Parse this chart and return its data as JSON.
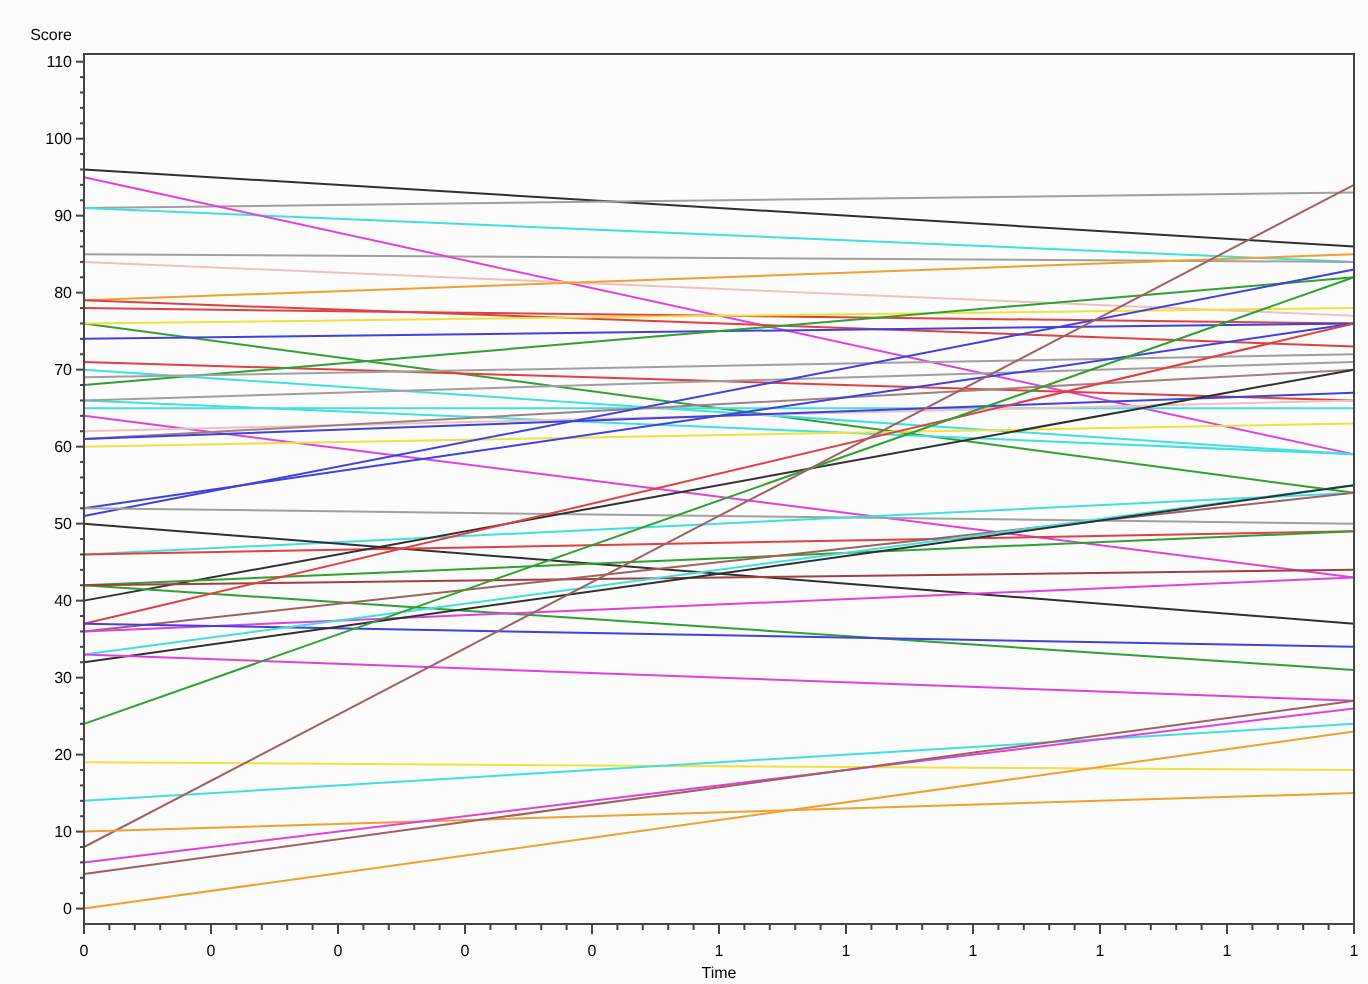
{
  "chart_data": {
    "type": "line",
    "xlabel": "Time",
    "ylabel": "Score",
    "x": [
      0,
      1
    ],
    "xlim": [
      0,
      1
    ],
    "ylim": [
      -2,
      111
    ],
    "xticks": [
      {
        "value": 0,
        "label": "0"
      },
      {
        "value": 0.1,
        "label": "0"
      },
      {
        "value": 0.2,
        "label": "0"
      },
      {
        "value": 0.3,
        "label": "0"
      },
      {
        "value": 0.4,
        "label": "0"
      },
      {
        "value": 0.5,
        "label": "1"
      },
      {
        "value": 0.6,
        "label": "1"
      },
      {
        "value": 0.7,
        "label": "1"
      },
      {
        "value": 0.8,
        "label": "1"
      },
      {
        "value": 0.9,
        "label": "1"
      },
      {
        "value": 1,
        "label": "1"
      }
    ],
    "yticks": [
      0,
      10,
      20,
      30,
      40,
      50,
      60,
      70,
      80,
      90,
      100,
      110
    ],
    "grid": false,
    "marker": "none",
    "line_style": "solid",
    "series": [
      {
        "color": "#303030",
        "values": [
          96,
          86
        ]
      },
      {
        "color": "#a0a0a0",
        "values": [
          91,
          93
        ]
      },
      {
        "color": "#40e0e0",
        "values": [
          91,
          84
        ]
      },
      {
        "color": "#a0a0a0",
        "values": [
          85,
          84
        ]
      },
      {
        "color": "#e040e0",
        "values": [
          95,
          59
        ]
      },
      {
        "color": "#f0c0c0",
        "values": [
          84,
          77
        ]
      },
      {
        "color": "#f0a030",
        "values": [
          79,
          85
        ]
      },
      {
        "color": "#e04040",
        "values": [
          79,
          73
        ]
      },
      {
        "color": "#e04040",
        "values": [
          78,
          76
        ]
      },
      {
        "color": "#30a030",
        "values": [
          76,
          54
        ]
      },
      {
        "color": "#f0e040",
        "values": [
          76,
          78
        ]
      },
      {
        "color": "#4040e0",
        "values": [
          74,
          76
        ]
      },
      {
        "color": "#e04040",
        "values": [
          71,
          66
        ]
      },
      {
        "color": "#30a030",
        "values": [
          68,
          82
        ]
      },
      {
        "color": "#40e0e0",
        "values": [
          70,
          59
        ]
      },
      {
        "color": "#a0a0a0",
        "values": [
          69,
          72
        ]
      },
      {
        "color": "#40e0e0",
        "values": [
          66,
          59
        ]
      },
      {
        "color": "#a0a0a0",
        "values": [
          66,
          71
        ]
      },
      {
        "color": "#40e0e0",
        "values": [
          65,
          65
        ]
      },
      {
        "color": "#e040e0",
        "values": [
          64,
          43
        ]
      },
      {
        "color": "#f0c0c0",
        "values": [
          62,
          66
        ]
      },
      {
        "color": "#a08080",
        "values": [
          61,
          70
        ]
      },
      {
        "color": "#f0e040",
        "values": [
          60,
          63
        ]
      },
      {
        "color": "#4040e0",
        "values": [
          61,
          67
        ]
      },
      {
        "color": "#4040e0",
        "values": [
          51,
          83
        ]
      },
      {
        "color": "#4040e0",
        "values": [
          52,
          76
        ]
      },
      {
        "color": "#a0a0a0",
        "values": [
          52,
          50
        ]
      },
      {
        "color": "#40e0e0",
        "values": [
          46,
          54
        ]
      },
      {
        "color": "#303030",
        "values": [
          50,
          37
        ]
      },
      {
        "color": "#e04040",
        "values": [
          46,
          49
        ]
      },
      {
        "color": "#303030",
        "values": [
          40,
          70
        ]
      },
      {
        "color": "#30a030",
        "values": [
          42,
          49
        ]
      },
      {
        "color": "#30a030",
        "values": [
          42,
          31
        ]
      },
      {
        "color": "#a04040",
        "values": [
          42,
          44
        ]
      },
      {
        "color": "#e04040",
        "values": [
          37,
          76
        ]
      },
      {
        "color": "#a06060",
        "values": [
          36,
          54
        ]
      },
      {
        "color": "#e040e0",
        "values": [
          36,
          43
        ]
      },
      {
        "color": "#4040e0",
        "values": [
          37,
          34
        ]
      },
      {
        "color": "#40e0e0",
        "values": [
          33,
          55
        ]
      },
      {
        "color": "#303030",
        "values": [
          32,
          55
        ]
      },
      {
        "color": "#e040e0",
        "values": [
          33,
          27
        ]
      },
      {
        "color": "#30a030",
        "values": [
          24,
          82
        ]
      },
      {
        "color": "#f0e040",
        "values": [
          19,
          18
        ]
      },
      {
        "color": "#40e0e0",
        "values": [
          14,
          24
        ]
      },
      {
        "color": "#a06060",
        "values": [
          8,
          94
        ]
      },
      {
        "color": "#f0a030",
        "values": [
          10,
          15
        ]
      },
      {
        "color": "#e040e0",
        "values": [
          6,
          26
        ]
      },
      {
        "color": "#a06060",
        "values": [
          4.5,
          27
        ]
      },
      {
        "color": "#f0a030",
        "values": [
          0,
          23
        ]
      }
    ]
  }
}
